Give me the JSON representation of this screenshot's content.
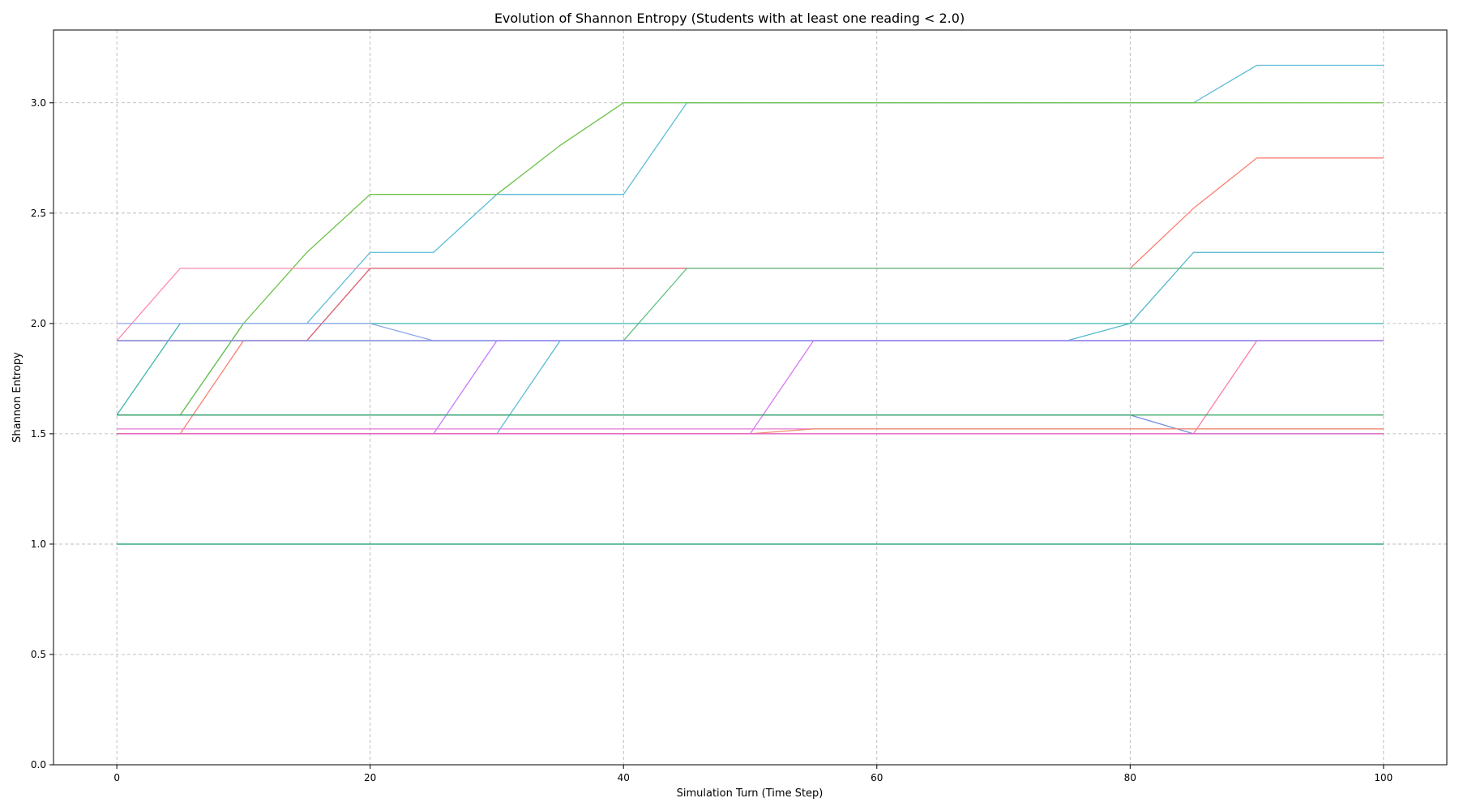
{
  "chart_data": {
    "type": "line",
    "title": "Evolution of Shannon Entropy (Students with at least one reading < 2.0)",
    "xlabel": "Simulation Turn (Time Step)",
    "ylabel": "Shannon Entropy",
    "xlim": [
      -5,
      105
    ],
    "ylim": [
      0,
      3.33
    ],
    "xticks": [
      0,
      20,
      40,
      60,
      80,
      100
    ],
    "xtick_labels": [
      "0",
      "20",
      "40",
      "60",
      "80",
      "100"
    ],
    "yticks": [
      0.0,
      0.5,
      1.0,
      1.5,
      2.0,
      2.5,
      3.0
    ],
    "ytick_labels": [
      "0.0",
      "0.5",
      "1.0",
      "1.5",
      "2.0",
      "2.5",
      "3.0"
    ],
    "grid": true,
    "x": [
      0,
      5,
      10,
      15,
      20,
      25,
      30,
      35,
      40,
      45,
      50,
      55,
      60,
      65,
      70,
      75,
      80,
      85,
      90,
      95,
      100
    ],
    "series": [
      {
        "color": "#5bbcd6",
        "values": [
          1.585,
          1.585,
          2.0,
          2.0,
          2.322,
          2.322,
          2.585,
          2.585,
          2.585,
          3.0,
          3.0,
          3.0,
          3.0,
          3.0,
          3.0,
          3.0,
          3.0,
          3.0,
          3.17,
          3.17,
          3.17
        ]
      },
      {
        "color": "#6cc24a",
        "values": [
          1.585,
          1.585,
          2.0,
          2.322,
          2.585,
          2.585,
          2.585,
          2.807,
          3.0,
          3.0,
          3.0,
          3.0,
          3.0,
          3.0,
          3.0,
          3.0,
          3.0,
          3.0,
          3.0,
          3.0,
          3.0
        ]
      },
      {
        "color": "#fa8072",
        "values": [
          1.5,
          1.5,
          1.922,
          1.922,
          2.25,
          2.25,
          2.25,
          2.25,
          2.25,
          2.25,
          2.25,
          2.25,
          2.25,
          2.25,
          2.25,
          2.25,
          2.25,
          2.522,
          2.75,
          2.75,
          2.75
        ]
      },
      {
        "color": "#4fb8c9",
        "values": [
          1.922,
          1.922,
          1.922,
          1.922,
          1.922,
          1.922,
          1.922,
          1.922,
          1.922,
          1.922,
          1.922,
          1.922,
          1.922,
          1.922,
          1.922,
          1.922,
          2.0,
          2.322,
          2.322,
          2.322,
          2.322
        ]
      },
      {
        "color": "#ff88aa",
        "values": [
          1.922,
          2.25,
          2.25,
          2.25,
          2.25,
          2.25,
          2.25,
          2.25,
          2.25,
          2.25,
          2.25,
          2.25,
          2.25,
          2.25,
          2.25,
          2.25,
          2.25,
          2.25,
          2.25,
          2.25,
          2.25
        ]
      },
      {
        "color": "#d9687a",
        "values": [
          1.922,
          1.922,
          1.922,
          1.922,
          2.25,
          2.25,
          2.25,
          2.25,
          2.25,
          2.25,
          2.25,
          2.25,
          2.25,
          2.25,
          2.25,
          2.25,
          2.25,
          2.25,
          2.25,
          2.25,
          2.25
        ]
      },
      {
        "color": "#62c080",
        "values": [
          1.922,
          1.922,
          1.922,
          1.922,
          1.922,
          1.922,
          1.922,
          1.922,
          1.922,
          2.25,
          2.25,
          2.25,
          2.25,
          2.25,
          2.25,
          2.25,
          2.25,
          2.25,
          2.25,
          2.25,
          2.25
        ]
      },
      {
        "color": "#3fb5ad",
        "values": [
          1.585,
          2.0,
          2.0,
          2.0,
          2.0,
          2.0,
          2.0,
          2.0,
          2.0,
          2.0,
          2.0,
          2.0,
          2.0,
          2.0,
          2.0,
          2.0,
          2.0,
          2.0,
          2.0,
          2.0,
          2.0
        ]
      },
      {
        "color": "#8ea8e8",
        "values": [
          2.0,
          2.0,
          2.0,
          2.0,
          2.0,
          1.922,
          1.922,
          1.922,
          1.922,
          1.922,
          1.922,
          1.922,
          1.922,
          1.922,
          1.922,
          1.922,
          1.922,
          1.922,
          1.922,
          1.922,
          1.922
        ]
      },
      {
        "color": "#c77cff",
        "values": [
          1.5,
          1.5,
          1.5,
          1.5,
          1.5,
          1.5,
          1.922,
          1.922,
          1.922,
          1.922,
          1.922,
          1.922,
          1.922,
          1.922,
          1.922,
          1.922,
          1.922,
          1.922,
          1.922,
          1.922,
          1.922
        ]
      },
      {
        "color": "#5bbcd6",
        "values": [
          1.5,
          1.5,
          1.5,
          1.5,
          1.5,
          1.5,
          1.5,
          1.922,
          1.922,
          1.922,
          1.922,
          1.922,
          1.922,
          1.922,
          1.922,
          1.922,
          1.922,
          1.922,
          1.922,
          1.922,
          1.922
        ]
      },
      {
        "color": "#d97af0",
        "values": [
          1.5,
          1.5,
          1.5,
          1.5,
          1.5,
          1.5,
          1.5,
          1.5,
          1.5,
          1.5,
          1.5,
          1.922,
          1.922,
          1.922,
          1.922,
          1.922,
          1.922,
          1.922,
          1.922,
          1.922,
          1.922
        ]
      },
      {
        "color": "#ff7fa0",
        "values": [
          1.5,
          1.5,
          1.5,
          1.5,
          1.5,
          1.5,
          1.5,
          1.5,
          1.5,
          1.5,
          1.5,
          1.5,
          1.5,
          1.5,
          1.5,
          1.5,
          1.5,
          1.5,
          1.922,
          1.922,
          1.922
        ]
      },
      {
        "color": "#9b8ef0",
        "values": [
          1.922,
          1.922,
          1.922,
          1.922,
          1.922,
          1.922,
          1.922,
          1.922,
          1.922,
          1.922,
          1.922,
          1.922,
          1.922,
          1.922,
          1.922,
          1.922,
          1.922,
          1.922,
          1.922,
          1.922,
          1.922
        ]
      },
      {
        "color": "#6e8fe0",
        "values": [
          1.585,
          1.585,
          1.585,
          1.585,
          1.585,
          1.585,
          1.585,
          1.585,
          1.585,
          1.585,
          1.585,
          1.585,
          1.585,
          1.585,
          1.585,
          1.585,
          1.585,
          1.5,
          1.5,
          1.5,
          1.5
        ]
      },
      {
        "color": "#2ca35c",
        "values": [
          1.585,
          1.585,
          1.585,
          1.585,
          1.585,
          1.585,
          1.585,
          1.585,
          1.585,
          1.585,
          1.585,
          1.585,
          1.585,
          1.585,
          1.585,
          1.585,
          1.585,
          1.585,
          1.585,
          1.585,
          1.585
        ]
      },
      {
        "color": "#e57bd6",
        "values": [
          1.522,
          1.522,
          1.522,
          1.522,
          1.522,
          1.522,
          1.522,
          1.522,
          1.522,
          1.522,
          1.522,
          1.522,
          1.522,
          1.522,
          1.522,
          1.522,
          1.522,
          1.522,
          1.522,
          1.522,
          1.522
        ]
      },
      {
        "color": "#f08a6a",
        "values": [
          1.5,
          1.5,
          1.5,
          1.5,
          1.5,
          1.5,
          1.5,
          1.5,
          1.5,
          1.5,
          1.5,
          1.522,
          1.522,
          1.522,
          1.522,
          1.522,
          1.522,
          1.522,
          1.522,
          1.522,
          1.522
        ]
      },
      {
        "color": "#e05dc0",
        "values": [
          1.5,
          1.5,
          1.5,
          1.5,
          1.5,
          1.5,
          1.5,
          1.5,
          1.5,
          1.5,
          1.5,
          1.5,
          1.5,
          1.5,
          1.5,
          1.5,
          1.5,
          1.5,
          1.5,
          1.5,
          1.5
        ]
      },
      {
        "color": "#1b9e77",
        "values": [
          1.0,
          1.0,
          1.0,
          1.0,
          1.0,
          1.0,
          1.0,
          1.0,
          1.0,
          1.0,
          1.0,
          1.0,
          1.0,
          1.0,
          1.0,
          1.0,
          1.0,
          1.0,
          1.0,
          1.0,
          1.0
        ]
      }
    ]
  }
}
